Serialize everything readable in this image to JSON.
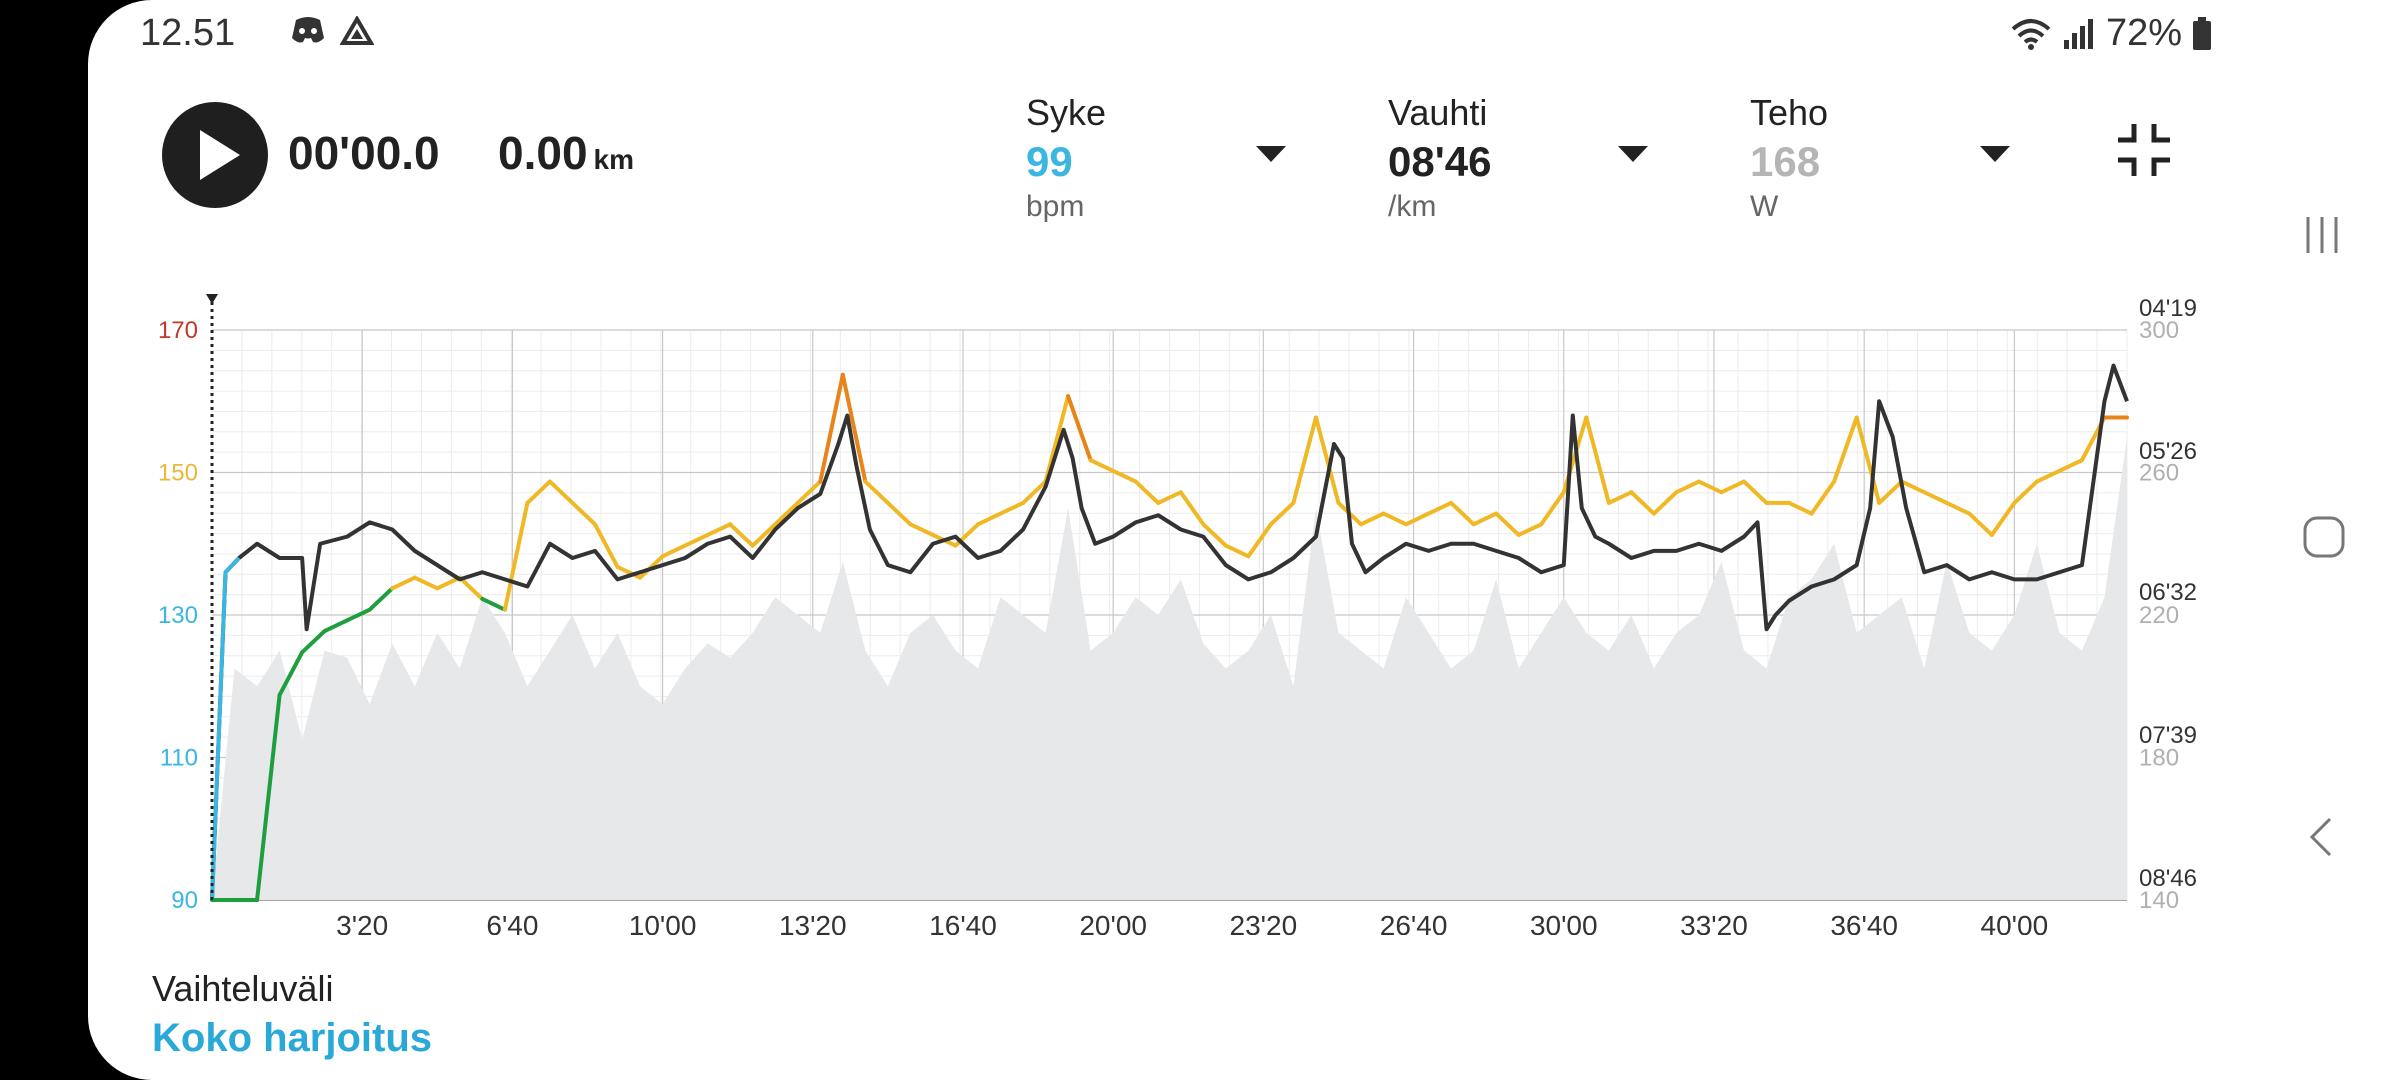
{
  "status_bar": {
    "time": "12.51",
    "battery": "72%",
    "icons": [
      "discord-icon",
      "drive-icon",
      "wifi-icon",
      "signal-icon",
      "battery-icon"
    ]
  },
  "player": {
    "elapsed": "00'00.0",
    "distance": "0.00",
    "distance_unit": "km"
  },
  "metrics": [
    {
      "label": "Syke",
      "value": "99",
      "unit": "bpm",
      "color": "#3ab6e0"
    },
    {
      "label": "Vauhti",
      "value": "08'46",
      "unit": "/km",
      "color": "#222222"
    },
    {
      "label": "Teho",
      "value": "168",
      "unit": "W",
      "color": "#b5b5b5"
    }
  ],
  "range": {
    "label": "Vaihteluväli",
    "value": "Koko harjoitus"
  },
  "colors": {
    "hr_high": "#c0392b",
    "hr_mid": "#e8b83a",
    "hr_low": "#3ab6e0",
    "pace": "#f0b825",
    "pace_fast": "#e8841a",
    "pace_slow": "#1e9e3e",
    "hr_line": "#333333",
    "power_fill": "#e6e8ea"
  },
  "chart_data": {
    "type": "line",
    "x_unit": "min",
    "x_range": [
      0,
      42.5
    ],
    "x_ticks": [
      "3'20",
      "6'40",
      "10'00",
      "13'20",
      "16'40",
      "20'00",
      "23'20",
      "26'40",
      "30'00",
      "33'20",
      "36'40",
      "40'00"
    ],
    "x_tick_values": [
      3.333,
      6.667,
      10.0,
      13.333,
      16.667,
      20.0,
      23.333,
      26.667,
      30.0,
      33.333,
      36.667,
      40.0
    ],
    "left_axis": {
      "name": "Syke (bpm)",
      "range": [
        90,
        170
      ],
      "ticks": [
        "90",
        "110",
        "130",
        "150",
        "170"
      ]
    },
    "right_axis_pace": {
      "name": "Vauhti",
      "ticks": [
        "04'19",
        "05'26",
        "06'32",
        "07'39",
        "08'46"
      ]
    },
    "right_axis_power": {
      "name": "Teho (W)",
      "range": [
        140,
        300
      ],
      "ticks": [
        "140",
        "180",
        "220",
        "260",
        "300"
      ]
    },
    "series": [
      {
        "name": "Syke",
        "x": [
          0,
          0.3,
          0.6,
          1,
          1.5,
          2,
          2.1,
          2.2,
          2.4,
          3,
          3.5,
          4,
          4.5,
          5,
          5.5,
          6,
          6.5,
          7,
          7.5,
          8,
          8.5,
          9,
          9.5,
          10,
          10.5,
          11,
          11.5,
          12,
          12.5,
          13,
          13.5,
          13.9,
          14.1,
          14.3,
          14.6,
          15,
          15.5,
          16,
          16.5,
          17,
          17.5,
          18,
          18.5,
          18.9,
          19.1,
          19.3,
          19.6,
          20,
          20.5,
          21,
          21.5,
          22,
          22.5,
          23,
          23.5,
          24,
          24.5,
          24.9,
          25.1,
          25.3,
          25.6,
          26,
          26.5,
          27,
          27.5,
          28,
          28.5,
          29,
          29.5,
          30,
          30.2,
          30.4,
          30.7,
          31,
          31.5,
          32,
          32.5,
          33,
          33.5,
          34,
          34.3,
          34.5,
          34.7,
          35,
          35.5,
          36,
          36.5,
          36.8,
          37,
          37.3,
          37.6,
          38,
          38.5,
          39,
          39.5,
          40,
          40.5,
          41,
          41.5,
          42,
          42.2,
          42.5
        ],
        "values": [
          90,
          136,
          138,
          140,
          138,
          138,
          128,
          132,
          140,
          141,
          143,
          142,
          139,
          137,
          135,
          136,
          135,
          134,
          140,
          138,
          139,
          135,
          136,
          137,
          138,
          140,
          141,
          138,
          142,
          145,
          147,
          154,
          158,
          151,
          142,
          137,
          136,
          140,
          141,
          138,
          139,
          142,
          148,
          156,
          152,
          145,
          140,
          141,
          143,
          144,
          142,
          141,
          137,
          135,
          136,
          138,
          141,
          154,
          152,
          140,
          136,
          138,
          140,
          139,
          140,
          140,
          139,
          138,
          136,
          137,
          158,
          145,
          141,
          140,
          138,
          139,
          139,
          140,
          139,
          141,
          143,
          128,
          130,
          132,
          134,
          135,
          137,
          145,
          160,
          155,
          145,
          136,
          137,
          135,
          136,
          135,
          135,
          136,
          137,
          160,
          165,
          160
        ]
      },
      {
        "name": "Vauhti",
        "x": [
          0,
          1,
          1.5,
          2,
          2.5,
          3,
          3.5,
          4,
          4.5,
          5,
          5.5,
          6,
          6.5,
          7,
          7.5,
          8,
          8.5,
          9,
          9.5,
          10,
          10.5,
          11,
          11.5,
          12,
          12.5,
          13,
          13.5,
          14,
          14.5,
          15,
          15.5,
          16,
          16.5,
          17,
          17.5,
          18,
          18.5,
          19,
          19.5,
          20,
          20.5,
          21,
          21.5,
          22,
          22.5,
          23,
          23.5,
          24,
          24.5,
          25,
          25.5,
          26,
          26.5,
          27,
          27.5,
          28,
          28.5,
          29,
          29.5,
          30,
          30.5,
          31,
          31.5,
          32,
          32.5,
          33,
          33.5,
          34,
          34.5,
          35,
          35.5,
          36,
          36.5,
          37,
          37.5,
          38,
          38.5,
          39,
          39.5,
          40,
          40.5,
          41,
          41.5,
          42,
          42.5
        ],
        "values": [
          "08'46",
          "08'46",
          "07'10",
          "06'50",
          "06'40",
          "06'35",
          "06'30",
          "06'20",
          "06'15",
          "06'20",
          "06'15",
          "06'25",
          "06'30",
          "05'40",
          "05'30",
          "05'40",
          "05'50",
          "06'10",
          "06'15",
          "06'05",
          "06'00",
          "05'55",
          "05'50",
          "06'00",
          "05'50",
          "05'40",
          "05'30",
          "04'40",
          "05'30",
          "05'40",
          "05'50",
          "05'55",
          "06'00",
          "05'50",
          "05'45",
          "05'40",
          "05'30",
          "04'50",
          "05'20",
          "05'25",
          "05'30",
          "05'40",
          "05'35",
          "05'50",
          "06'00",
          "06'05",
          "05'50",
          "05'40",
          "05'00",
          "05'40",
          "05'50",
          "05'45",
          "05'50",
          "05'45",
          "05'40",
          "05'50",
          "05'45",
          "05'55",
          "05'50",
          "05'35",
          "05'00",
          "05'40",
          "05'35",
          "05'45",
          "05'35",
          "05'30",
          "05'35",
          "05'30",
          "05'40",
          "05'40",
          "05'45",
          "05'30",
          "05'00",
          "05'40",
          "05'30",
          "05'35",
          "05'40",
          "05'45",
          "05'55",
          "05'40",
          "05'30",
          "05'25",
          "05'20",
          "05'00",
          "05'00"
        ]
      },
      {
        "name": "Teho",
        "x": [
          0,
          0.5,
          1,
          1.5,
          2,
          2.5,
          3,
          3.5,
          4,
          4.5,
          5,
          5.5,
          6,
          6.5,
          7,
          7.5,
          8,
          8.5,
          9,
          9.5,
          10,
          10.5,
          11,
          11.5,
          12,
          12.5,
          13,
          13.5,
          14,
          14.5,
          15,
          15.5,
          16,
          16.5,
          17,
          17.5,
          18,
          18.5,
          19,
          19.5,
          20,
          20.5,
          21,
          21.5,
          22,
          22.5,
          23,
          23.5,
          24,
          24.5,
          25,
          25.5,
          26,
          26.5,
          27,
          27.5,
          28,
          28.5,
          29,
          29.5,
          30,
          30.5,
          31,
          31.5,
          32,
          32.5,
          33,
          33.5,
          34,
          34.5,
          35,
          35.5,
          36,
          36.5,
          37,
          37.5,
          38,
          38.5,
          39,
          39.5,
          40,
          40.5,
          41,
          41.5,
          42,
          42.5
        ],
        "values": [
          140,
          205,
          200,
          210,
          185,
          210,
          208,
          195,
          212,
          200,
          215,
          205,
          225,
          215,
          200,
          210,
          220,
          205,
          215,
          200,
          195,
          205,
          212,
          208,
          215,
          225,
          220,
          215,
          235,
          210,
          200,
          215,
          220,
          210,
          205,
          225,
          220,
          215,
          250,
          210,
          215,
          225,
          220,
          230,
          212,
          205,
          210,
          220,
          200,
          250,
          215,
          210,
          205,
          225,
          215,
          205,
          210,
          230,
          205,
          215,
          225,
          215,
          210,
          220,
          205,
          215,
          220,
          235,
          210,
          205,
          225,
          230,
          240,
          215,
          220,
          225,
          205,
          235,
          215,
          210,
          220,
          240,
          215,
          210,
          225,
          270
        ]
      }
    ]
  }
}
